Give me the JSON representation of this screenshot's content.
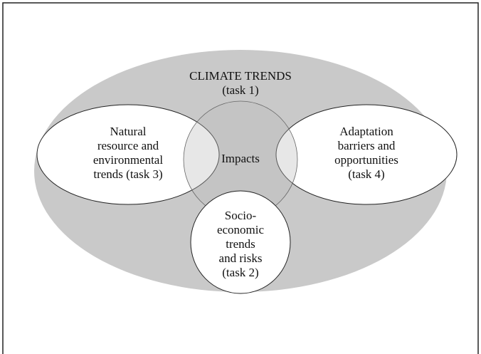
{
  "title": {
    "lines": [
      "CLIMATE TRENDS",
      "(task 1)"
    ]
  },
  "nodes": [
    {
      "lines": [
        "Natural",
        "resource and",
        "environmental",
        "trends (task 3)"
      ]
    },
    {
      "lines": [
        "Impacts"
      ]
    },
    {
      "lines": [
        "Adaptation",
        "barriers and",
        "opportunities",
        "(task 4)"
      ]
    },
    {
      "lines": [
        "Socio-",
        "economic",
        "trends",
        "and risks",
        "(task 2)"
      ]
    }
  ]
}
